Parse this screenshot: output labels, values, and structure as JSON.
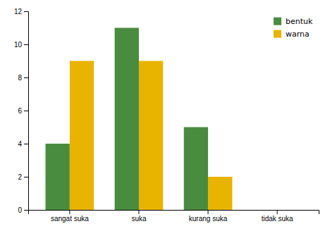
{
  "chart_data": {
    "type": "bar",
    "categories": [
      "sangat suka",
      "suka",
      "kurang suka",
      "tidak suka"
    ],
    "series": [
      {
        "name": "bentuk",
        "color": "#4a8c3f",
        "values": [
          4,
          11,
          5,
          0
        ]
      },
      {
        "name": "warna",
        "color": "#e8b400",
        "values": [
          9,
          9,
          2,
          0
        ]
      }
    ],
    "ylim": [
      0,
      12
    ],
    "yticks": [
      0,
      2,
      4,
      6,
      8,
      10,
      12
    ],
    "grid": false,
    "legend": "upper right"
  }
}
